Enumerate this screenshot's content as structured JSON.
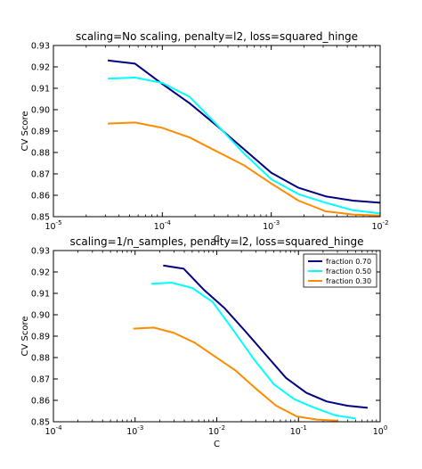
{
  "chart_data": [
    {
      "type": "line",
      "title": "scaling=No scaling, penalty=l2, loss=squared_hinge",
      "xlabel": "C",
      "ylabel": "CV Score",
      "xscale": "log",
      "xlim": [
        1e-05,
        0.01
      ],
      "ylim": [
        0.85,
        0.93
      ],
      "xticks": [
        {
          "value": 1e-05,
          "base": "10",
          "exp": "-5"
        },
        {
          "value": 0.0001,
          "base": "10",
          "exp": "-4"
        },
        {
          "value": 0.001,
          "base": "10",
          "exp": "-3"
        },
        {
          "value": 0.01,
          "base": "10",
          "exp": "-2"
        }
      ],
      "yticks": [
        "0.85",
        "0.86",
        "0.87",
        "0.88",
        "0.89",
        "0.90",
        "0.91",
        "0.92",
        "0.93"
      ],
      "legend": false,
      "series": [
        {
          "color": "#000080",
          "x": [
            3.16e-05,
            5.62e-05,
            0.0001,
            0.000178,
            0.000316,
            0.000562,
            0.001,
            0.00178,
            0.00316,
            0.00562,
            0.01
          ],
          "y": [
            0.923,
            0.9215,
            0.912,
            0.903,
            0.8925,
            0.8815,
            0.8705,
            0.8635,
            0.8595,
            0.8575,
            0.8565
          ]
        },
        {
          "color": "#00FFFF",
          "x": [
            3.16e-05,
            5.62e-05,
            0.0001,
            0.000178,
            0.000316,
            0.000562,
            0.001,
            0.00178,
            0.00316,
            0.00562,
            0.01
          ],
          "y": [
            0.9145,
            0.915,
            0.9125,
            0.906,
            0.893,
            0.8795,
            0.8675,
            0.8605,
            0.8565,
            0.853,
            0.8515
          ]
        },
        {
          "color": "#FF8C00",
          "x": [
            3.16e-05,
            5.62e-05,
            0.0001,
            0.000178,
            0.000316,
            0.000562,
            0.001,
            0.00178,
            0.00316,
            0.00562,
            0.01
          ],
          "y": [
            0.8935,
            0.894,
            0.8915,
            0.887,
            0.8805,
            0.874,
            0.8655,
            0.8575,
            0.8525,
            0.851,
            0.8505
          ]
        }
      ]
    },
    {
      "type": "line",
      "title": "scaling=1/n_samples, penalty=l2, loss=squared_hinge",
      "xlabel": "C",
      "ylabel": "CV Score",
      "xscale": "log",
      "xlim": [
        0.0001,
        1
      ],
      "ylim": [
        0.85,
        0.93
      ],
      "xticks": [
        {
          "value": 0.0001,
          "base": "10",
          "exp": "-4"
        },
        {
          "value": 0.001,
          "base": "10",
          "exp": "-3"
        },
        {
          "value": 0.01,
          "base": "10",
          "exp": "-2"
        },
        {
          "value": 0.1,
          "base": "10",
          "exp": "-1"
        },
        {
          "value": 1,
          "base": "10",
          "exp": "0"
        }
      ],
      "yticks": [
        "0.85",
        "0.86",
        "0.87",
        "0.88",
        "0.89",
        "0.90",
        "0.91",
        "0.92",
        "0.93"
      ],
      "legend": "top-right",
      "series": [
        {
          "name": "fraction 0.70",
          "color": "#000080",
          "x": [
            0.00221,
            0.00394,
            0.00702,
            0.0125,
            0.0221,
            0.0394,
            0.0702,
            0.125,
            0.221,
            0.394,
            0.702
          ],
          "y": [
            0.923,
            0.9215,
            0.9115,
            0.903,
            0.8925,
            0.8815,
            0.8705,
            0.8635,
            0.8595,
            0.8575,
            0.8565
          ]
        },
        {
          "name": "fraction 0.50",
          "color": "#00FFFF",
          "x": [
            0.00158,
            0.00281,
            0.005,
            0.00889,
            0.0158,
            0.0281,
            0.05,
            0.0889,
            0.158,
            0.281,
            0.5
          ],
          "y": [
            0.9145,
            0.915,
            0.9125,
            0.906,
            0.893,
            0.8795,
            0.8675,
            0.8605,
            0.8565,
            0.853,
            0.8515
          ]
        },
        {
          "name": "fraction 0.30",
          "color": "#FF8C00",
          "x": [
            0.000949,
            0.00169,
            0.003,
            0.00533,
            0.00949,
            0.0169,
            0.03,
            0.0533,
            0.0949,
            0.169,
            0.3
          ],
          "y": [
            0.8935,
            0.894,
            0.8915,
            0.887,
            0.8805,
            0.874,
            0.8655,
            0.8575,
            0.8525,
            0.851,
            0.8505
          ]
        }
      ]
    }
  ]
}
